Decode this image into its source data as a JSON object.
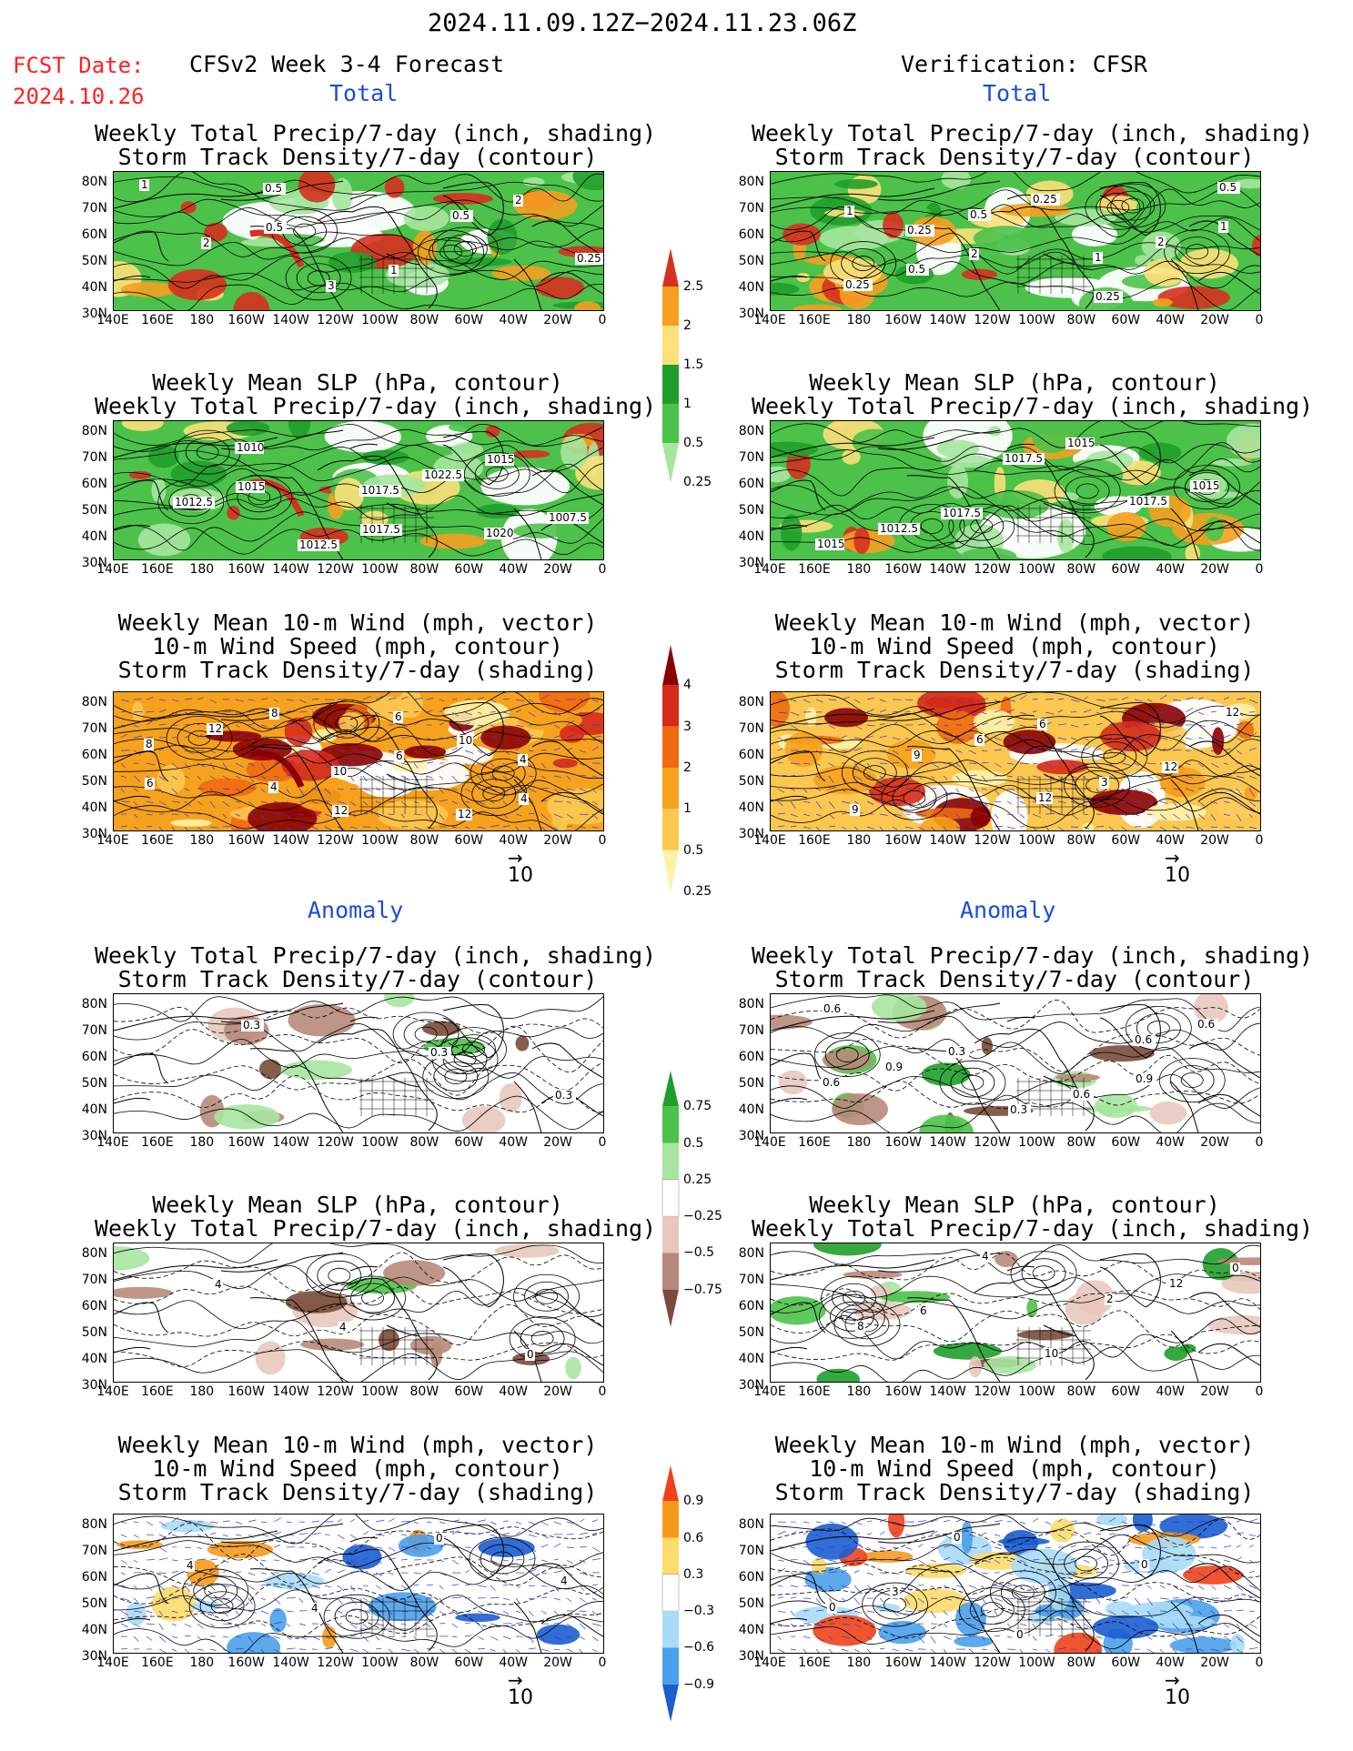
{
  "header": {
    "period": "2024.11.09.12Z−2024.11.23.06Z",
    "fcst_label": "FCST Date:",
    "fcst_date": "2024.10.26",
    "left_title": "CFSv2 Week 3-4 Forecast",
    "right_title": "Verification: CFSR"
  },
  "sections": {
    "total": "Total",
    "anomaly": "Anomaly"
  },
  "panel_titles": {
    "precip_storm": [
      "Weekly Total Precip/7-day (inch, shading)",
      "Storm Track Density/7-day (contour)"
    ],
    "slp_precip": [
      "Weekly Mean SLP (hPa, contour)",
      "Weekly Total Precip/7-day (inch, shading)"
    ],
    "wind_storm": [
      "Weekly Mean 10-m Wind (mph, vector)",
      "10-m Wind Speed (mph, contour)",
      "Storm Track Density/7-day (shading)"
    ]
  },
  "axes": {
    "lat_labels": [
      "80N",
      "70N",
      "60N",
      "50N",
      "40N",
      "30N"
    ],
    "lon_labels": [
      "140E",
      "160E",
      "180",
      "160W",
      "140W",
      "120W",
      "100W",
      "80W",
      "60W",
      "40W",
      "20W",
      "0"
    ]
  },
  "vector_ref": "10",
  "colorbars": {
    "precip_total": {
      "labels": [
        "2.5",
        "2",
        "1.5",
        "1",
        "0.5",
        "0.25"
      ],
      "colors": [
        "#d7301f",
        "#f5a020",
        "#fde07a",
        "#1f9e2b",
        "#4cc24a",
        "#a6e6a0"
      ]
    },
    "storm_total": {
      "labels": [
        "4",
        "3",
        "2",
        "1",
        "0.5",
        "0.25"
      ],
      "colors": [
        "#8b0000",
        "#d62a1a",
        "#f06a10",
        "#f7a21c",
        "#fcc74e",
        "#fff2a8"
      ]
    },
    "precip_anom": {
      "labels": [
        "0.75",
        "0.5",
        "0.25",
        "−0.25",
        "−0.5",
        "−0.75"
      ],
      "colors": [
        "#1f9e2b",
        "#4cc24a",
        "#a6e6a0",
        "#ffffff",
        "#e8c8bc",
        "#b8897a",
        "#7a4b3a"
      ]
    },
    "storm_anom": {
      "labels": [
        "0.9",
        "0.6",
        "0.3",
        "−0.3",
        "−0.6",
        "−0.9"
      ],
      "colors": [
        "#f0421a",
        "#f79a1c",
        "#fddc6a",
        "#ffffff",
        "#a8dcf5",
        "#4aa0ea",
        "#1a5ed0"
      ]
    }
  },
  "contour_labels": {
    "p1": [
      "1",
      "0.5",
      "1",
      "2",
      "2",
      "3",
      "0.5",
      "0.25",
      "0.5"
    ],
    "p2": [
      "1015",
      "1017.5",
      "1015",
      "1012.5",
      "1012.5",
      "1022.5",
      "1007.5",
      "1010",
      "1017.5",
      "1020"
    ],
    "p3": [
      "12",
      "10",
      "6",
      "8",
      "6",
      "4",
      "12",
      "10",
      "12",
      "8",
      "4",
      "6",
      "4"
    ],
    "p4": [
      "0.3",
      "0.3",
      "0.3"
    ],
    "p5": [
      "0",
      "4",
      "4"
    ],
    "p6": [
      "4",
      "4",
      "0",
      "4"
    ],
    "p7": [
      "1",
      "2",
      "0.25",
      "1",
      "0.5",
      "0.25",
      "2",
      "0.25",
      "0.5",
      "1",
      "0.5",
      "0.25"
    ],
    "p8": [
      "1017.5",
      "1015",
      "1015",
      "1012.5",
      "1017.5",
      "1017.5",
      "1015"
    ],
    "p9": [
      "6",
      "12",
      "9",
      "6",
      "3",
      "12",
      "9",
      "12"
    ],
    "p10": [
      "0.9",
      "0.6",
      "0.3",
      "0.6",
      "0.6",
      "0.9",
      "0.3",
      "0.6",
      "0.6"
    ],
    "p11": [
      "0",
      "6",
      "10",
      "12",
      "8",
      "4",
      "2"
    ],
    "p12": [
      "3",
      "0",
      "0",
      "0",
      "0"
    ]
  }
}
